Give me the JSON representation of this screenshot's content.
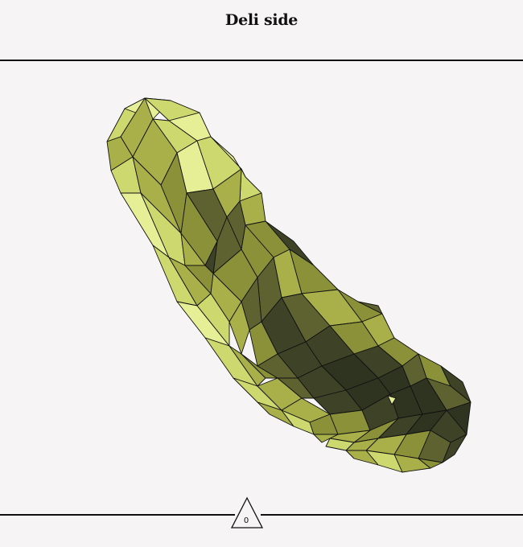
{
  "header": {
    "title": "Deli side"
  },
  "pickle": {
    "name": "pickle-model",
    "palette": {
      "highlight": "#e6ef96",
      "light": "#cdd86e",
      "mid": "#a9b049",
      "mid_dark": "#8a9138",
      "dark": "#5d6230",
      "shadow": "#3e4226",
      "deep": "#2f3420"
    },
    "outline_color": "#111111"
  },
  "footer": {
    "counter_value": "0"
  }
}
